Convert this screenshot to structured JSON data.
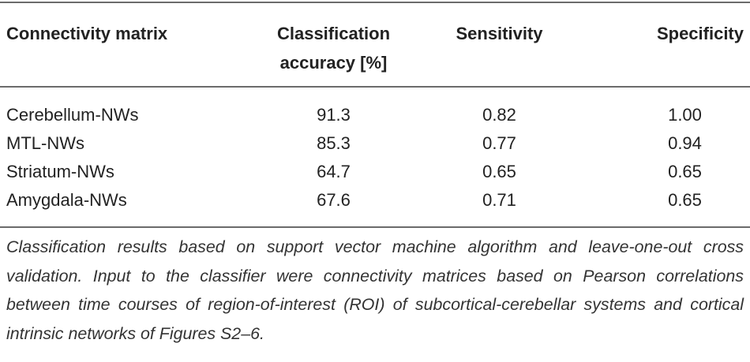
{
  "table": {
    "headers": [
      {
        "line1": "Connectivity matrix",
        "line2": ""
      },
      {
        "line1": "Classification",
        "line2": "accuracy [%]"
      },
      {
        "line1": "Sensitivity",
        "line2": ""
      },
      {
        "line1": "Specificity",
        "line2": ""
      }
    ],
    "rows": [
      [
        "Cerebellum-NWs",
        "91.3",
        "0.82",
        "1.00"
      ],
      [
        "MTL-NWs",
        "85.3",
        "0.77",
        "0.94"
      ],
      [
        "Striatum-NWs",
        "64.7",
        "0.65",
        "0.65"
      ],
      [
        "Amygdala-NWs",
        "67.6",
        "0.71",
        "0.65"
      ]
    ]
  },
  "caption": "Classification results based on support vector machine algorithm and leave-one-out cross validation. Input to the classifier were connectivity matrices based on Pearson correlations between time courses of region-of-interest (ROI) of subcortical-cerebellar systems and cortical intrinsic networks of Figures S2–6."
}
